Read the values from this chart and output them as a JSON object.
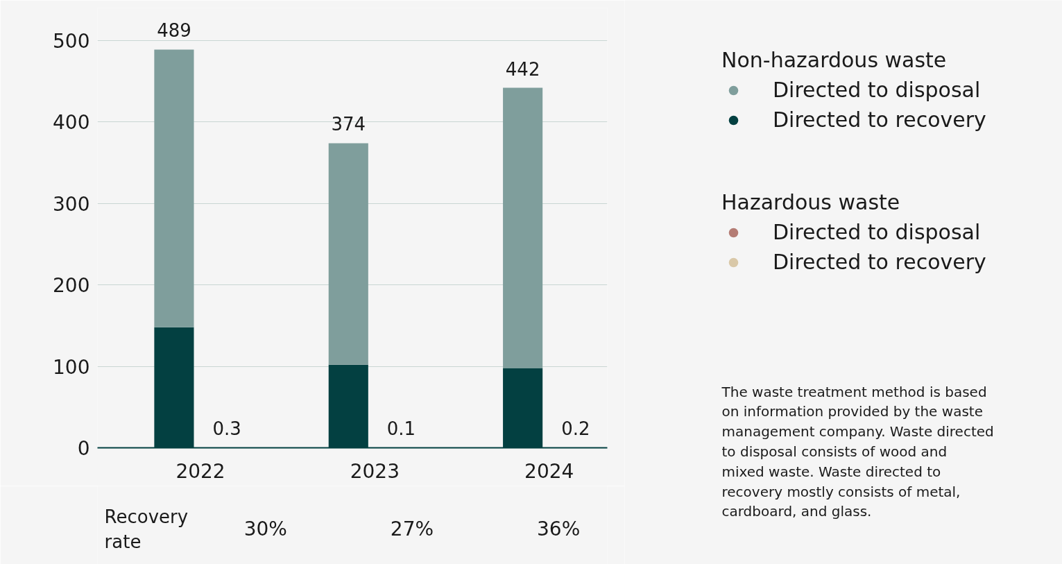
{
  "chart_data": {
    "type": "bar",
    "stacked": true,
    "categories": [
      "2022",
      null,
      "2023",
      null,
      "2024",
      null
    ],
    "series": [
      {
        "name": "Directed to recovery",
        "color": "#034041",
        "values": [
          148,
          null,
          102,
          null,
          98,
          null
        ]
      },
      {
        "name": "Directed to disposal",
        "color": "#7f9e9c",
        "values": [
          341,
          null,
          272,
          null,
          344,
          null
        ]
      },
      {
        "name": "Directed to recovery",
        "color": "#d9c8a8",
        "values": [
          null,
          0.1,
          null,
          0.0,
          null,
          0.1
        ]
      },
      {
        "name": "Directed to disposal",
        "color": "#b47c74",
        "values": [
          null,
          0.2,
          null,
          0.1,
          null,
          0.1
        ]
      }
    ],
    "totals": [
      "489",
      "0.3",
      "374",
      "0.1",
      "442",
      "0.2"
    ],
    "ylim": [
      0,
      540
    ],
    "yticks": [
      0,
      100,
      200,
      300,
      400,
      500
    ],
    "grid": "y",
    "legend": "right",
    "annotations": [
      "Non-hazardous waste",
      "Hazardous waste",
      "The waste treatment method is based on information provided by the waste management company. Waste directed to disposal consists of wood and mixed waste. Waste directed to recovery mostly consists of metal, cardboard, and glass.",
      "Recovery rate",
      "30%",
      "27%",
      "36%"
    ]
  }
}
